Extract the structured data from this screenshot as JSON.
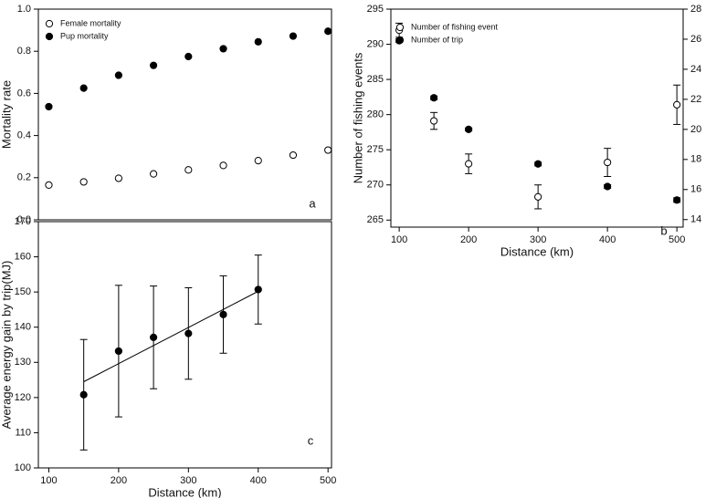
{
  "chart_data": [
    {
      "type": "scatter",
      "y_label": "Mortality rate",
      "annotation": "a",
      "x": [
        100,
        150,
        200,
        250,
        300,
        350,
        400,
        450,
        500
      ],
      "xlim": [
        85,
        505
      ],
      "ylim": [
        0,
        1
      ],
      "yticks": [
        {
          "value": 0,
          "label": "0.0"
        },
        0.2,
        0.4,
        0.6,
        0.8,
        {
          "value": 1,
          "label": "1.0"
        }
      ],
      "series": [
        {
          "name": "Female mortality",
          "color": "#000000",
          "marker": "open",
          "values": [
            0.165,
            0.18,
            0.197,
            0.218,
            0.237,
            0.258,
            0.281,
            0.307,
            0.331
          ]
        },
        {
          "name": "Pup mortality",
          "color": "#000000",
          "marker": "filled",
          "values": [
            0.537,
            0.625,
            0.686,
            0.733,
            0.775,
            0.812,
            0.845,
            0.872,
            0.895
          ]
        }
      ]
    },
    {
      "type": "scatter",
      "x_label": "Distance (km)",
      "y_label": "Number of fishing events",
      "annotation": "b",
      "x": [
        100,
        150,
        200,
        300,
        400,
        500
      ],
      "xlim": [
        88,
        509
      ],
      "ylim": [
        264,
        295
      ],
      "y2lim": [
        13.5,
        28
      ],
      "xticks": [
        100,
        200,
        300,
        400,
        500
      ],
      "yticks": [
        265,
        270,
        275,
        280,
        285,
        290,
        295
      ],
      "y2ticks": [
        14,
        16,
        18,
        20,
        22,
        24,
        26,
        28
      ],
      "series": [
        {
          "name": "Number of fishing event",
          "color": "#000000",
          "marker": "open",
          "values": [
            292,
            279.1,
            273,
            268.3,
            273.2,
            281.4
          ],
          "errors": [
            1,
            1.2,
            1.4,
            1.7,
            2,
            2.8
          ]
        },
        {
          "name": "Number of trip",
          "color": "#000000",
          "marker": "filled",
          "axis": "y2",
          "values": [
            25.9,
            22.1,
            20,
            17.7,
            16.2,
            15.3
          ],
          "errors": [
            0.12,
            0.12,
            0.1,
            0.12,
            0.12,
            0.15
          ]
        }
      ]
    },
    {
      "type": "scatter",
      "x_label": "Distance (km)",
      "y_label": "Average energy gain by trip(MJ)",
      "annotation": "c",
      "x": [
        150,
        200,
        250,
        300,
        350,
        400
      ],
      "xlim": [
        85,
        505
      ],
      "ylim": [
        100,
        170
      ],
      "xticks": [
        100,
        200,
        300,
        400,
        500
      ],
      "yticks": [
        100,
        110,
        120,
        130,
        140,
        150,
        160,
        170
      ],
      "series": [
        {
          "color": "#000000",
          "marker": "filled",
          "values": [
            120.8,
            133.2,
            137.1,
            138.2,
            143.6,
            150.7
          ],
          "errors": [
            15.7,
            18.7,
            14.6,
            13,
            11,
            9.8
          ]
        }
      ],
      "trend": {
        "x": [
          150,
          400
        ],
        "values": [
          124.5,
          150.2
        ]
      }
    }
  ]
}
